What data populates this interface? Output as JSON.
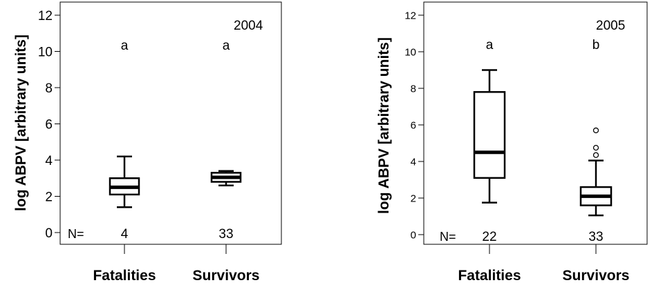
{
  "chart_data": [
    {
      "type": "box",
      "title": "",
      "annotation": "2004",
      "ylabel": "log ABPV [arbitrary units]",
      "ylim": [
        0,
        12.5
      ],
      "yticks": [
        "0",
        "2",
        "4",
        "6",
        "8",
        "10",
        "12"
      ],
      "n_prefix": "N=",
      "categories": [
        "Fatalities",
        "Survivors"
      ],
      "boxes": [
        {
          "name": "Fatalities",
          "whisker_low": 1.4,
          "q1": 2.1,
          "median": 2.5,
          "q3": 3.0,
          "whisker_high": 4.2,
          "outliers": [],
          "n": "4",
          "group_letter": "a"
        },
        {
          "name": "Survivors",
          "whisker_low": 2.6,
          "q1": 2.8,
          "median": 3.05,
          "q3": 3.3,
          "whisker_high": 3.4,
          "outliers": [],
          "n": "33",
          "group_letter": "a"
        }
      ]
    },
    {
      "type": "box",
      "title": "",
      "annotation": "2005",
      "ylabel": "log ABPV [arbitrary units]",
      "ylim": [
        0,
        12.5
      ],
      "yticks": [
        "0",
        "2",
        "4",
        "6",
        "8",
        "10",
        "12"
      ],
      "n_prefix": "N=",
      "categories": [
        "Fatalities",
        "Survivors"
      ],
      "boxes": [
        {
          "name": "Fatalities",
          "whisker_low": 1.75,
          "q1": 3.1,
          "median": 4.5,
          "q3": 7.8,
          "whisker_high": 9.0,
          "outliers": [],
          "n": "22",
          "group_letter": "a"
        },
        {
          "name": "Survivors",
          "whisker_low": 1.05,
          "q1": 1.6,
          "median": 2.1,
          "q3": 2.6,
          "whisker_high": 4.05,
          "outliers": [
            4.35,
            4.75,
            5.7
          ],
          "n": "33",
          "group_letter": "b"
        }
      ]
    }
  ]
}
